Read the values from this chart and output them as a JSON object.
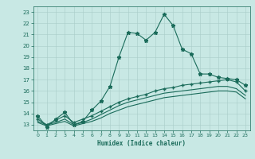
{
  "title": "",
  "xlabel": "Humidex (Indice chaleur)",
  "ylabel": "",
  "xlim": [
    -0.5,
    23.5
  ],
  "ylim": [
    12.5,
    23.5
  ],
  "xticks": [
    0,
    1,
    2,
    3,
    4,
    5,
    6,
    7,
    8,
    9,
    10,
    11,
    12,
    13,
    14,
    15,
    16,
    17,
    18,
    19,
    20,
    21,
    22,
    23
  ],
  "yticks": [
    13,
    14,
    15,
    16,
    17,
    18,
    19,
    20,
    21,
    22,
    23
  ],
  "bg_color": "#c8e8e4",
  "line_color": "#1a6b5a",
  "grid_color": "#a8ccc8",
  "line1_x": [
    0,
    1,
    2,
    3,
    4,
    5,
    6,
    7,
    8,
    9,
    10,
    11,
    12,
    13,
    14,
    15,
    16,
    17,
    18,
    19,
    20,
    21,
    22,
    23
  ],
  "line1_y": [
    13.8,
    12.8,
    13.5,
    14.1,
    13.0,
    13.3,
    14.3,
    15.1,
    16.4,
    19.0,
    21.2,
    21.1,
    20.5,
    21.2,
    22.8,
    21.8,
    19.7,
    19.3,
    17.5,
    17.5,
    17.2,
    17.1,
    17.0,
    16.5
  ],
  "line2_x": [
    0,
    1,
    2,
    3,
    4,
    5,
    6,
    7,
    8,
    9,
    10,
    11,
    12,
    13,
    14,
    15,
    16,
    17,
    18,
    19,
    20,
    21,
    22,
    23
  ],
  "line2_y": [
    13.5,
    13.0,
    13.4,
    13.8,
    13.2,
    13.5,
    13.8,
    14.2,
    14.6,
    15.0,
    15.3,
    15.5,
    15.7,
    16.0,
    16.2,
    16.3,
    16.5,
    16.6,
    16.7,
    16.8,
    16.9,
    17.0,
    16.8,
    16.0
  ],
  "line3_x": [
    0,
    1,
    2,
    3,
    4,
    5,
    6,
    7,
    8,
    9,
    10,
    11,
    12,
    13,
    14,
    15,
    16,
    17,
    18,
    19,
    20,
    21,
    22,
    23
  ],
  "line3_y": [
    13.3,
    13.0,
    13.2,
    13.5,
    13.0,
    13.2,
    13.5,
    13.9,
    14.3,
    14.7,
    15.0,
    15.2,
    15.4,
    15.6,
    15.8,
    15.9,
    16.0,
    16.1,
    16.2,
    16.3,
    16.4,
    16.4,
    16.2,
    15.6
  ],
  "line4_x": [
    0,
    1,
    2,
    3,
    4,
    5,
    6,
    7,
    8,
    9,
    10,
    11,
    12,
    13,
    14,
    15,
    16,
    17,
    18,
    19,
    20,
    21,
    22,
    23
  ],
  "line4_y": [
    13.2,
    12.9,
    13.1,
    13.3,
    12.9,
    13.1,
    13.3,
    13.6,
    14.0,
    14.3,
    14.6,
    14.8,
    15.0,
    15.2,
    15.4,
    15.5,
    15.6,
    15.7,
    15.8,
    15.9,
    16.0,
    16.0,
    15.9,
    15.3
  ]
}
